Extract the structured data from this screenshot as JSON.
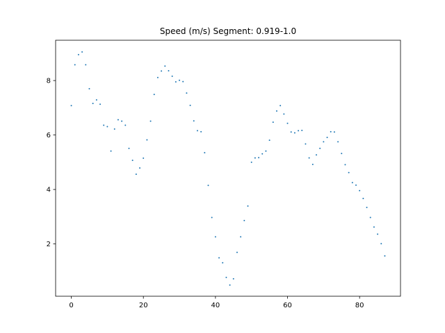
{
  "chart_data": {
    "type": "scatter",
    "title": "Speed (m/s) Segment: 0.919-1.0",
    "xlabel": "",
    "ylabel": "",
    "xlim": [
      -4.35,
      91.35
    ],
    "ylim": [
      0.08,
      9.48
    ],
    "xticks": [
      0,
      20,
      40,
      60,
      80
    ],
    "yticks": [
      2,
      4,
      6,
      8
    ],
    "grid": false,
    "legend": "none",
    "color": "#1f77b4",
    "series": [
      {
        "x": [
          0,
          1,
          2,
          3,
          4,
          5,
          6,
          7,
          8,
          9,
          10,
          11,
          12,
          13,
          14,
          15,
          16,
          17,
          18,
          19,
          20,
          21,
          22,
          23,
          24,
          25,
          26,
          27,
          28,
          29,
          30,
          31,
          32,
          33,
          34,
          35,
          36,
          37,
          38,
          39,
          40,
          41,
          42,
          43,
          44,
          45,
          46,
          47,
          48,
          49,
          50,
          51,
          52,
          53,
          54,
          55,
          56,
          57,
          58,
          59,
          60,
          61,
          62,
          63,
          64,
          65,
          66,
          67,
          68,
          69,
          70,
          71,
          72,
          73,
          74,
          75,
          76,
          77,
          78,
          79,
          80,
          81,
          82,
          83,
          84,
          85,
          86,
          87
        ],
        "y": [
          7.08,
          8.58,
          8.95,
          9.05,
          8.58,
          7.7,
          7.16,
          7.29,
          7.13,
          6.36,
          6.31,
          5.41,
          6.22,
          6.56,
          6.51,
          6.36,
          5.51,
          5.07,
          4.56,
          4.79,
          5.15,
          5.82,
          6.51,
          7.49,
          8.11,
          8.35,
          8.53,
          8.36,
          8.16,
          7.95,
          8.01,
          7.96,
          7.54,
          7.09,
          6.52,
          6.16,
          6.12,
          5.35,
          4.15,
          2.97,
          2.26,
          1.49,
          1.31,
          0.77,
          0.49,
          0.72,
          1.69,
          2.26,
          2.86,
          3.39,
          5.0,
          5.16,
          5.17,
          5.31,
          5.41,
          5.81,
          6.47,
          6.88,
          7.08,
          6.77,
          6.43,
          6.11,
          6.08,
          6.16,
          6.17,
          5.67,
          5.16,
          4.92,
          5.27,
          5.51,
          5.75,
          5.91,
          6.12,
          6.11,
          5.75,
          5.32,
          4.91,
          4.62,
          4.25,
          4.16,
          3.96,
          3.67,
          3.34,
          2.97,
          2.62,
          2.36,
          2.01,
          1.56
        ]
      }
    ]
  }
}
